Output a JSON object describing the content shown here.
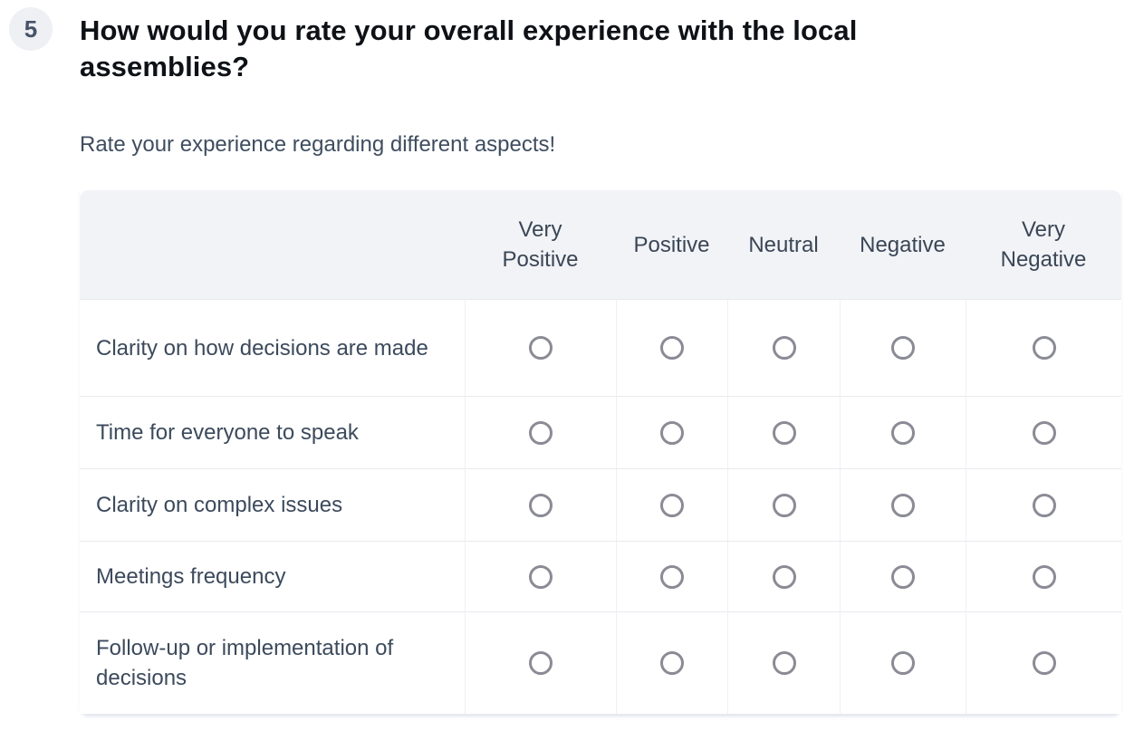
{
  "question": {
    "number": "5",
    "title": "How would you rate your overall experience with the local assemblies?",
    "description": "Rate your experience regarding different aspects!"
  },
  "matrix": {
    "columns": [
      "Very Positive",
      "Positive",
      "Neutral",
      "Negative",
      "Very Negative"
    ],
    "rows": [
      "Clarity on how decisions are made",
      "Time for everyone to speak",
      "Clarity on complex issues",
      "Meetings frequency",
      "Follow-up or implementation of decisions"
    ],
    "selected_answers": []
  },
  "colors": {
    "badge_background": "#eef0f4",
    "badge_text": "#47536a",
    "title_text": "#0e1116",
    "secondary_text": "#3f4d5f",
    "header_background": "#f2f3f7",
    "row_divider": "#e8eaee",
    "radio_border": "#8a8b95"
  }
}
